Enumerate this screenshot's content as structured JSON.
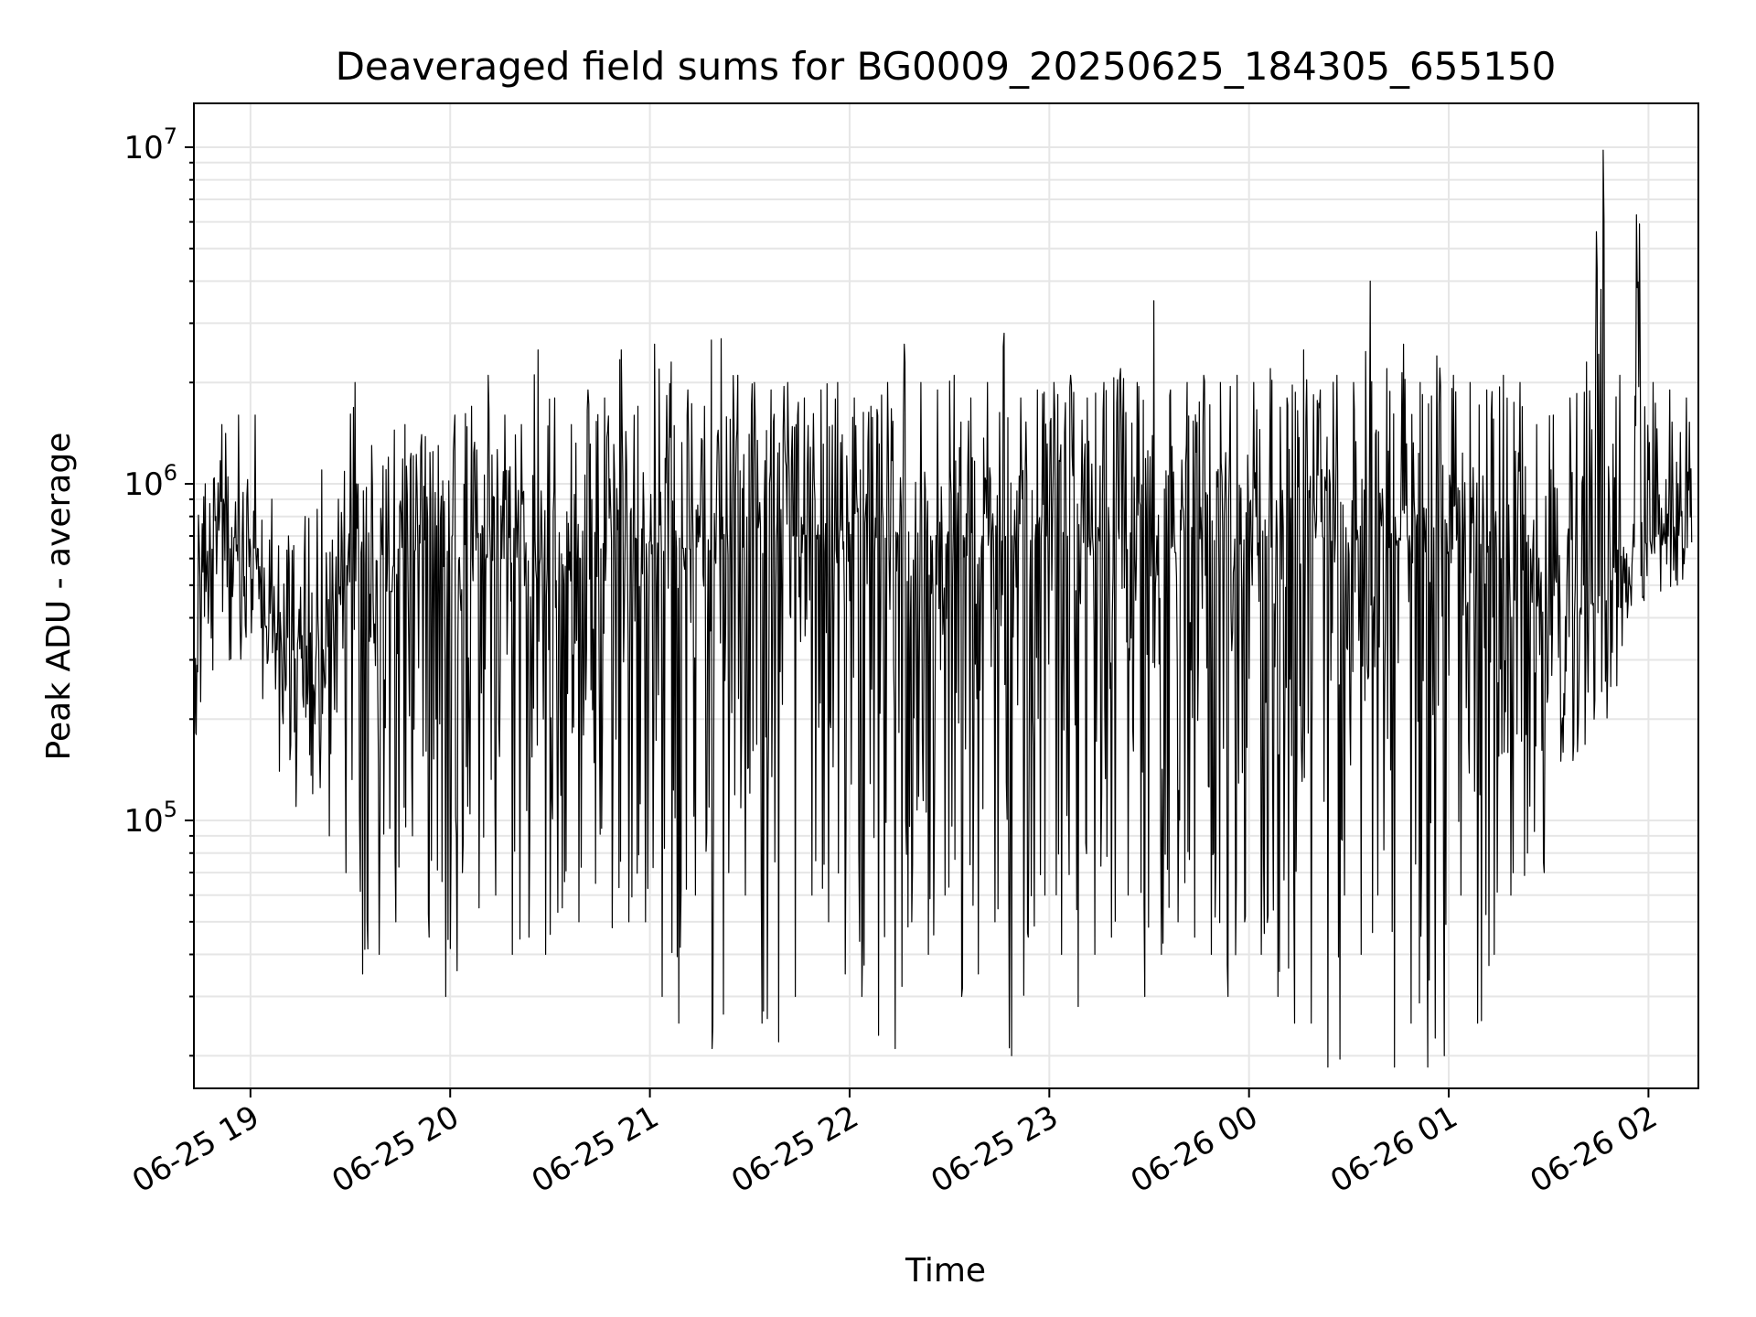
{
  "chart_data": {
    "type": "line",
    "title": "Deaveraged field sums for BG0009_20250625_184305_655150",
    "xlabel": "Time",
    "ylabel": "Peak ADU - average",
    "yscale": "log",
    "grid": true,
    "x_range": [
      "2025-06-25 18:43",
      "2025-06-26 02:15"
    ],
    "ylim": [
      16000,
      13500000
    ],
    "x_ticks": [
      {
        "value": "2025-06-25 19:00",
        "label": "06-25 19"
      },
      {
        "value": "2025-06-25 20:00",
        "label": "06-25 20"
      },
      {
        "value": "2025-06-25 21:00",
        "label": "06-25 21"
      },
      {
        "value": "2025-06-25 22:00",
        "label": "06-25 22"
      },
      {
        "value": "2025-06-25 23:00",
        "label": "06-25 23"
      },
      {
        "value": "2025-06-26 00:00",
        "label": "06-26 00"
      },
      {
        "value": "2025-06-26 01:00",
        "label": "06-26 01"
      },
      {
        "value": "2025-06-26 02:00",
        "label": "06-26 02"
      }
    ],
    "y_ticks": [
      {
        "value": 100000,
        "base": "10",
        "exp": "5"
      },
      {
        "value": 1000000,
        "base": "10",
        "exp": "6"
      },
      {
        "value": 10000000,
        "base": "10",
        "exp": "7"
      }
    ],
    "series": [
      {
        "color": "#000000",
        "x": [
          "2025-06-25 18:43",
          "2025-06-25 18:48",
          "2025-06-25 18:53",
          "2025-06-25 18:58",
          "2025-06-25 19:03",
          "2025-06-25 19:08",
          "2025-06-25 19:13",
          "2025-06-25 19:18",
          "2025-06-25 19:23",
          "2025-06-25 19:28",
          "2025-06-25 19:33",
          "2025-06-25 19:38",
          "2025-06-25 19:43",
          "2025-06-25 19:48",
          "2025-06-25 19:53",
          "2025-06-25 19:58",
          "2025-06-25 20:03",
          "2025-06-25 20:08",
          "2025-06-25 20:13",
          "2025-06-25 20:18",
          "2025-06-25 20:23",
          "2025-06-25 20:28",
          "2025-06-25 20:33",
          "2025-06-25 20:38",
          "2025-06-25 20:43",
          "2025-06-25 20:48",
          "2025-06-25 20:53",
          "2025-06-25 20:58",
          "2025-06-25 21:03",
          "2025-06-25 21:08",
          "2025-06-25 21:13",
          "2025-06-25 21:18",
          "2025-06-25 21:23",
          "2025-06-25 21:28",
          "2025-06-25 21:33",
          "2025-06-25 21:38",
          "2025-06-25 21:43",
          "2025-06-25 21:48",
          "2025-06-25 21:53",
          "2025-06-25 21:58",
          "2025-06-25 22:03",
          "2025-06-25 22:08",
          "2025-06-25 22:13",
          "2025-06-25 22:18",
          "2025-06-25 22:23",
          "2025-06-25 22:28",
          "2025-06-25 22:33",
          "2025-06-25 22:38",
          "2025-06-25 22:43",
          "2025-06-25 22:48",
          "2025-06-25 22:53",
          "2025-06-25 22:58",
          "2025-06-25 23:03",
          "2025-06-25 23:08",
          "2025-06-25 23:13",
          "2025-06-25 23:18",
          "2025-06-25 23:23",
          "2025-06-25 23:28",
          "2025-06-25 23:33",
          "2025-06-25 23:38",
          "2025-06-25 23:43",
          "2025-06-25 23:48",
          "2025-06-25 23:53",
          "2025-06-25 23:58",
          "2025-06-26 00:03",
          "2025-06-26 00:08",
          "2025-06-26 00:13",
          "2025-06-26 00:18",
          "2025-06-26 00:23",
          "2025-06-26 00:28",
          "2025-06-26 00:33",
          "2025-06-26 00:38",
          "2025-06-26 00:43",
          "2025-06-26 00:48",
          "2025-06-26 00:53",
          "2025-06-26 00:58",
          "2025-06-26 01:03",
          "2025-06-26 01:08",
          "2025-06-26 01:13",
          "2025-06-26 01:18",
          "2025-06-26 01:23",
          "2025-06-26 01:28",
          "2025-06-26 01:33",
          "2025-06-26 01:38",
          "2025-06-26 01:43",
          "2025-06-26 01:48",
          "2025-06-26 01:53",
          "2025-06-26 01:58",
          "2025-06-26 02:03",
          "2025-06-26 02:08",
          "2025-06-26 02:13"
        ],
        "lower": [
          180000,
          280000,
          300000,
          350000,
          230000,
          140000,
          110000,
          120000,
          90000,
          70000,
          35000,
          40000,
          50000,
          90000,
          45000,
          30000,
          70000,
          55000,
          60000,
          40000,
          45000,
          40000,
          55000,
          50000,
          65000,
          48000,
          50000,
          50000,
          30000,
          25000,
          60000,
          21000,
          70000,
          60000,
          25000,
          22000,
          30000,
          60000,
          50000,
          35000,
          30000,
          23000,
          21000,
          50000,
          40000,
          60000,
          30000,
          35000,
          50000,
          20000,
          45000,
          60000,
          40000,
          28000,
          40000,
          45000,
          60000,
          30000,
          40000,
          50000,
          45000,
          40000,
          30000,
          50000,
          40000,
          30000,
          25000,
          25000,
          18500,
          60000,
          40000,
          60000,
          18500,
          25000,
          18500,
          20000,
          60000,
          25000,
          40000,
          60000,
          80000,
          70000,
          150000,
          160000,
          200000,
          250000,
          400000,
          450000,
          480000,
          500000,
          520000
        ],
        "upper": [
          1000000,
          1500000,
          1600000,
          1600000,
          900000,
          700000,
          800000,
          1100000,
          900000,
          2000000,
          1300000,
          1200000,
          1500000,
          1400000,
          1300000,
          1600000,
          1700000,
          2100000,
          1600000,
          1500000,
          2500000,
          1800000,
          1500000,
          1900000,
          1800000,
          2500000,
          1700000,
          2600000,
          2300000,
          1900000,
          1700000,
          2700000,
          2100000,
          2000000,
          1900000,
          2000000,
          1800000,
          1900000,
          2000000,
          1800000,
          1700000,
          2000000,
          2600000,
          2000000,
          1900000,
          2100000,
          1800000,
          2000000,
          2800000,
          1800000,
          1900000,
          2000000,
          2100000,
          1800000,
          2000000,
          2200000,
          2000000,
          3500000,
          1900000,
          2000000,
          2100000,
          2000000,
          2100000,
          2000000,
          2200000,
          1800000,
          2500000,
          1900000,
          2100000,
          2000000,
          4000000,
          2200000,
          2600000,
          2000000,
          2400000,
          2100000,
          2000000,
          1900000,
          2100000,
          2000000,
          1500000,
          1600000,
          1800000,
          2300000,
          9800000,
          2100000,
          6300000,
          2000000,
          1900000,
          1800000,
          1700000
        ],
        "median": [
          500000,
          650000,
          700000,
          620000,
          400000,
          350000,
          320000,
          330000,
          450000,
          500000,
          450000,
          480000,
          550000,
          600000,
          620000,
          580000,
          600000,
          620000,
          600000,
          580000,
          550000,
          560000,
          580000,
          600000,
          620000,
          640000,
          650000,
          660000,
          650000,
          640000,
          650000,
          660000,
          680000,
          650000,
          660000,
          670000,
          680000,
          660000,
          650000,
          680000,
          690000,
          700000,
          700000,
          690000,
          700000,
          680000,
          690000,
          700000,
          700000,
          680000,
          690000,
          700000,
          700000,
          690000,
          700000,
          710000,
          700000,
          700000,
          690000,
          700000,
          700000,
          700000,
          690000,
          700000,
          700000,
          690000,
          700000,
          690000,
          680000,
          690000,
          700000,
          680000,
          690000,
          700000,
          690000,
          680000,
          680000,
          650000,
          600000,
          550000,
          500000,
          450000,
          420000,
          420000,
          450000,
          550000,
          650000,
          680000,
          700000,
          680000,
          670000
        ]
      }
    ]
  }
}
